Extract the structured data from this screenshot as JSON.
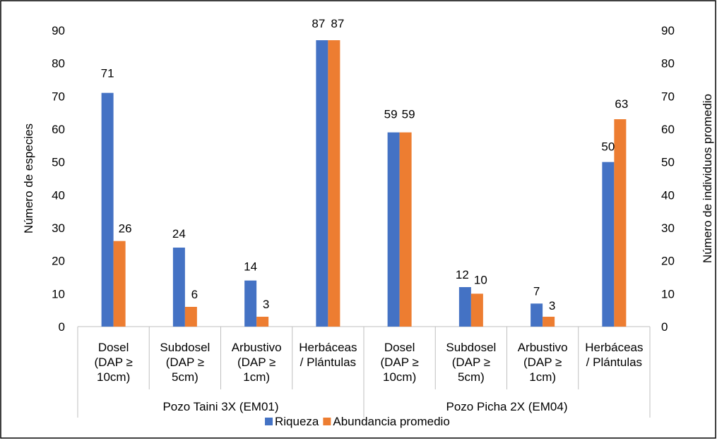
{
  "chart_data": {
    "type": "bar",
    "groups": [
      {
        "label": "Pozo Taini 3X (EM01)",
        "categories": [
          0,
          1,
          2,
          3
        ]
      },
      {
        "label": "Pozo Picha 2X (EM04)",
        "categories": [
          4,
          5,
          6,
          7
        ]
      }
    ],
    "categories": [
      [
        "Dosel",
        "(DAP ≥",
        "10cm)"
      ],
      [
        "Subdosel",
        "(DAP ≥",
        "5cm)"
      ],
      [
        "Arbustivo",
        "(DAP ≥",
        "1cm)"
      ],
      [
        "Herbáceas",
        "/ Plántulas"
      ],
      [
        "Dosel",
        "(DAP ≥",
        "10cm)"
      ],
      [
        "Subdosel",
        "(DAP ≥",
        "5cm)"
      ],
      [
        "Arbustivo",
        "(DAP ≥",
        "1cm)"
      ],
      [
        "Herbáceas",
        "/ Plántulas"
      ]
    ],
    "series": [
      {
        "name": "Riqueza",
        "axis": "left",
        "color": "#4472C4",
        "values": [
          71,
          24,
          14,
          87,
          59,
          12,
          7,
          50
        ]
      },
      {
        "name": "Abundancia promedio",
        "axis": "right",
        "color": "#ED7D31",
        "values": [
          26,
          6,
          3,
          87,
          59,
          10,
          3,
          63
        ]
      }
    ],
    "ylabel": "Número de especies",
    "y2label": "Número de individuos promedio",
    "ylim": [
      0,
      90
    ],
    "y2lim": [
      0,
      90
    ],
    "yticks": [
      0,
      10,
      20,
      30,
      40,
      50,
      60,
      70,
      80,
      90
    ],
    "grid": false,
    "legend_position": "bottom"
  }
}
